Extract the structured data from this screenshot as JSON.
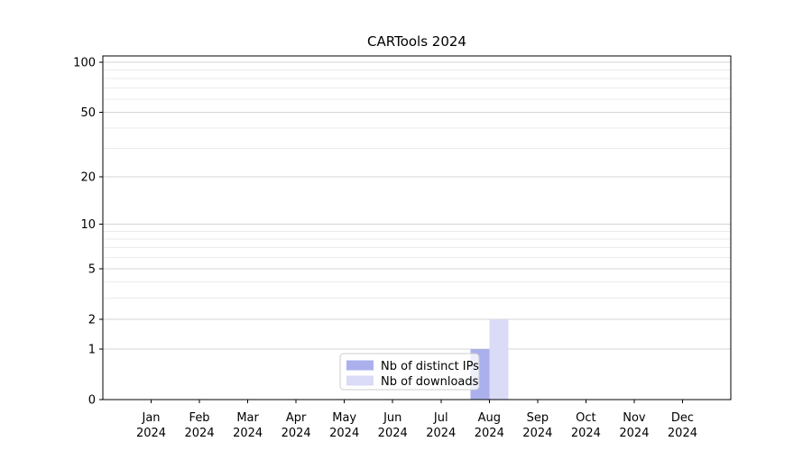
{
  "chart_data": {
    "type": "bar",
    "title": "CARTools 2024",
    "categories": [
      "Jan 2024",
      "Feb 2024",
      "Mar 2024",
      "Apr 2024",
      "May 2024",
      "Jun 2024",
      "Jul 2024",
      "Aug 2024",
      "Sep 2024",
      "Oct 2024",
      "Nov 2024",
      "Dec 2024"
    ],
    "x_tick_labels": [
      {
        "month": "Jan",
        "year": "2024"
      },
      {
        "month": "Feb",
        "year": "2024"
      },
      {
        "month": "Mar",
        "year": "2024"
      },
      {
        "month": "Apr",
        "year": "2024"
      },
      {
        "month": "May",
        "year": "2024"
      },
      {
        "month": "Jun",
        "year": "2024"
      },
      {
        "month": "Jul",
        "year": "2024"
      },
      {
        "month": "Aug",
        "year": "2024"
      },
      {
        "month": "Sep",
        "year": "2024"
      },
      {
        "month": "Oct",
        "year": "2024"
      },
      {
        "month": "Nov",
        "year": "2024"
      },
      {
        "month": "Dec",
        "year": "2024"
      }
    ],
    "series": [
      {
        "name": "Nb of distinct IPs",
        "color": "#abb0ed",
        "values": [
          0,
          0,
          0,
          0,
          0,
          0,
          0,
          1,
          0,
          0,
          0,
          0
        ]
      },
      {
        "name": "Nb of downloads",
        "color": "#d9dbf7",
        "values": [
          0,
          0,
          0,
          0,
          0,
          0,
          0,
          2,
          0,
          0,
          0,
          0
        ]
      }
    ],
    "xlabel": "",
    "ylabel": "",
    "yscale": "log1p",
    "ylim": [
      0,
      109
    ],
    "y_ticks_major": [
      0,
      1,
      2,
      5,
      10,
      20,
      50,
      100
    ],
    "y_ticks_minor": [
      3,
      4,
      6,
      7,
      8,
      9,
      30,
      40,
      60,
      70,
      80,
      90
    ],
    "grid": "on",
    "legend_position": "lower center",
    "colors": {
      "grid_major": "#d6d6d6",
      "grid_minor": "#ebebeb",
      "axis": "#000000",
      "legend_border": "#cccccc",
      "background": "#ffffff"
    }
  }
}
